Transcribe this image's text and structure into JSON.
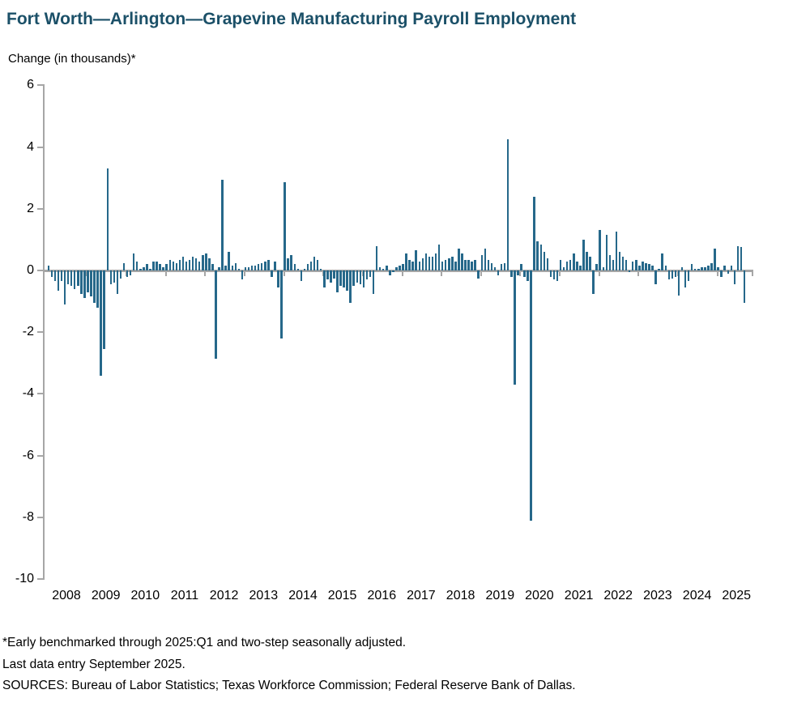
{
  "title": "Fort Worth—Arlington—Grapevine Manufacturing Payroll Employment",
  "y_axis_label": "Change (in thousands)*",
  "footnotes": [
    "*Early benchmarked through 2025:Q1 and two-step seasonally adjusted.",
    "Last data entry September 2025.",
    "SOURCES: Bureau of Labor Statistics; Texas Workforce Commission; Federal Reserve Bank of Dallas."
  ],
  "colors": {
    "title": "#1b5068",
    "bar": "#26688a",
    "axis": "#a6a6a6",
    "text": "#000000"
  },
  "chart_data": {
    "type": "bar",
    "title": "Fort Worth—Arlington—Grapevine Manufacturing Payroll Employment",
    "ylabel": "Change (in thousands)*",
    "frequency": "monthly",
    "start_month": "2008-01",
    "end_month": "2025-09",
    "ylim": [
      -10,
      6
    ],
    "y_ticks": [
      6,
      4,
      2,
      0,
      -2,
      -4,
      -6,
      -8,
      -10
    ],
    "x_tick_labels": [
      "2008",
      "2009",
      "2010",
      "2011",
      "2012",
      "2013",
      "2014",
      "2015",
      "2016",
      "2017",
      "2018",
      "2019",
      "2020",
      "2021",
      "2022",
      "2023",
      "2024",
      "2025"
    ],
    "grid": false,
    "legend": false,
    "values": [
      0.15,
      -0.2,
      -0.35,
      -0.65,
      -0.35,
      -1.1,
      -0.45,
      -0.5,
      -0.6,
      -0.5,
      -0.75,
      -0.9,
      -0.7,
      -0.85,
      -1.05,
      -1.2,
      -3.4,
      -2.55,
      3.3,
      -0.45,
      -0.4,
      -0.75,
      -0.25,
      0.25,
      -0.2,
      -0.15,
      0.55,
      0.3,
      0.05,
      0.1,
      0.2,
      0.05,
      0.3,
      0.3,
      0.2,
      0.1,
      0.2,
      0.35,
      0.3,
      0.25,
      0.35,
      0.45,
      0.3,
      0.35,
      0.45,
      0.4,
      0.3,
      0.5,
      0.55,
      0.4,
      0.2,
      -2.85,
      0.1,
      2.95,
      0.15,
      0.6,
      0.15,
      0.25,
      0.05,
      -0.3,
      0.1,
      0.1,
      0.15,
      0.15,
      0.2,
      0.25,
      0.3,
      0.35,
      -0.2,
      0.3,
      -0.55,
      -2.2,
      2.85,
      0.4,
      0.5,
      0.2,
      0.05,
      -0.35,
      0.05,
      0.2,
      0.3,
      0.45,
      0.35,
      0.05,
      -0.55,
      -0.3,
      -0.4,
      -0.25,
      -0.7,
      -0.5,
      -0.55,
      -0.65,
      -1.05,
      -0.5,
      -0.4,
      -0.45,
      -0.55,
      -0.3,
      -0.2,
      -0.75,
      0.8,
      0.1,
      0.05,
      0.15,
      -0.15,
      -0.05,
      0.1,
      0.15,
      0.2,
      0.55,
      0.35,
      0.3,
      0.65,
      0.3,
      0.4,
      0.55,
      0.45,
      0.45,
      0.55,
      0.85,
      0.3,
      0.35,
      0.4,
      0.45,
      0.3,
      0.7,
      0.55,
      0.35,
      0.35,
      0.3,
      0.35,
      -0.25,
      0.5,
      0.7,
      0.35,
      0.25,
      0.1,
      -0.15,
      0.2,
      0.25,
      4.25,
      -0.2,
      -3.7,
      -0.15,
      0.2,
      -0.2,
      -0.35,
      -8.1,
      2.4,
      0.95,
      0.85,
      0.6,
      0.4,
      -0.2,
      -0.3,
      -0.35,
      0.35,
      0.1,
      0.3,
      0.35,
      0.55,
      0.3,
      0.15,
      1.0,
      0.6,
      0.45,
      -0.75,
      0.2,
      1.3,
      0.1,
      1.15,
      0.5,
      0.35,
      1.25,
      0.6,
      0.45,
      0.35,
      -0.05,
      0.3,
      0.35,
      0.15,
      0.3,
      0.25,
      0.2,
      0.15,
      -0.45,
      0.05,
      0.55,
      0.15,
      -0.3,
      -0.25,
      -0.2,
      -0.8,
      0.1,
      -0.55,
      -0.35,
      0.2,
      0.05,
      0.05,
      0.1,
      0.1,
      0.15,
      0.25,
      0.7,
      0.1,
      -0.2,
      0.15,
      -0.1,
      0.15,
      -0.45,
      0.8,
      0.75,
      -1.05
    ]
  }
}
